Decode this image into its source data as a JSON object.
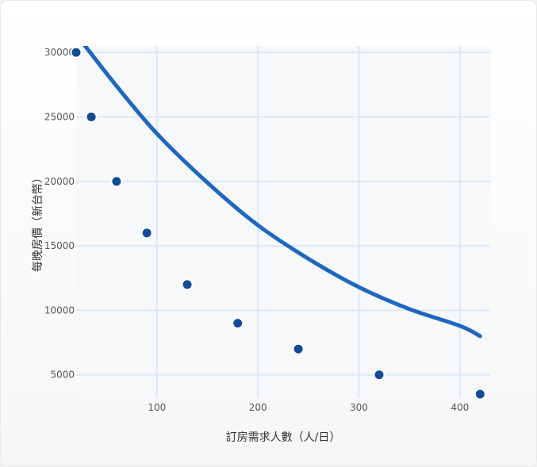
{
  "chart_data": {
    "type": "scatter",
    "xlabel": "訂房需求人數（人/日）",
    "ylabel": "每晚房價（新台幣）",
    "xlim": [
      20,
      430
    ],
    "ylim": [
      3200,
      30500
    ],
    "x_ticks": [
      100,
      200,
      300,
      400
    ],
    "y_ticks": [
      5000,
      10000,
      15000,
      20000,
      25000,
      30000
    ],
    "grid": true,
    "series": [
      {
        "kind": "scatter",
        "color": "#154a96",
        "points": [
          {
            "x": 20,
            "y": 30000
          },
          {
            "x": 35,
            "y": 25000
          },
          {
            "x": 60,
            "y": 20000
          },
          {
            "x": 90,
            "y": 16000
          },
          {
            "x": 130,
            "y": 12000
          },
          {
            "x": 180,
            "y": 9000
          },
          {
            "x": 240,
            "y": 7000
          },
          {
            "x": 320,
            "y": 5000
          },
          {
            "x": 420,
            "y": 3500
          }
        ]
      },
      {
        "kind": "line",
        "color": "#1f67bf",
        "points": [
          {
            "x": 24,
            "y": 31000
          },
          {
            "x": 60,
            "y": 27400
          },
          {
            "x": 100,
            "y": 23700
          },
          {
            "x": 150,
            "y": 19900
          },
          {
            "x": 200,
            "y": 16600
          },
          {
            "x": 250,
            "y": 14000
          },
          {
            "x": 300,
            "y": 11800
          },
          {
            "x": 350,
            "y": 10100
          },
          {
            "x": 400,
            "y": 8800
          },
          {
            "x": 420,
            "y": 8000
          }
        ]
      }
    ]
  }
}
